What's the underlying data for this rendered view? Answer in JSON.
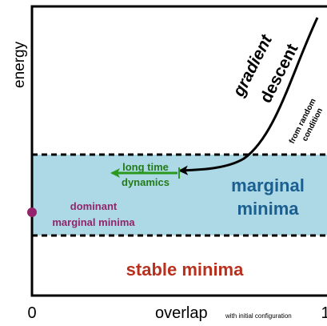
{
  "axes": {
    "y_label": "energy",
    "x_label": "overlap",
    "x_label_note": "with initial configuration",
    "x_origin_tick": "0",
    "x_end_tick": "1"
  },
  "trajectory": {
    "line1": "gradient",
    "line2": "descent",
    "note_line1": "from random",
    "note_line2": "condition"
  },
  "long_time": {
    "line1": "long time",
    "line2": "dynamics"
  },
  "marginal": {
    "line1": "marginal",
    "line2": "minima"
  },
  "dominant": {
    "line1": "dominant",
    "line2": "marginal minima"
  },
  "stable": {
    "label": "stable minima"
  },
  "colors": {
    "band": "#add8e6",
    "marginal_text": "#1a5f8f",
    "stable_text": "#b8311f",
    "dominant_text": "#93246b",
    "long_time_text": "#237a1a",
    "long_time_arrow": "#2a9a1e",
    "curve": "#000000"
  }
}
